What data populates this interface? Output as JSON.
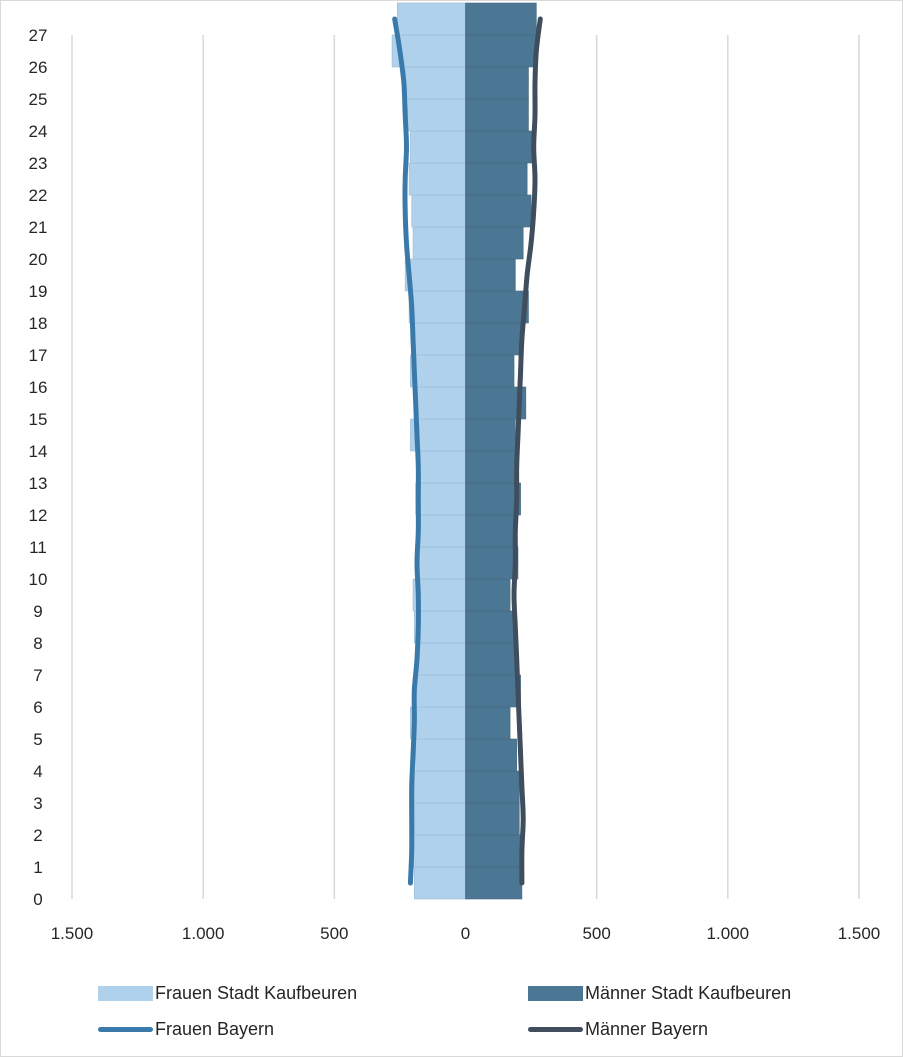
{
  "chart_data": {
    "type": "bar",
    "orientation": "horizontal",
    "subtype": "population-pyramid",
    "title": "",
    "xlabel": "",
    "ylabel": "",
    "xlim": [
      -1500,
      1500
    ],
    "x_ticks": [
      -1500,
      -1000,
      -500,
      0,
      500,
      1000,
      1500
    ],
    "x_tick_labels": [
      "1.500",
      "1.000",
      "500",
      "0",
      "500",
      "1.000",
      "1.500"
    ],
    "categories": [
      "0",
      "1",
      "2",
      "3",
      "4",
      "5",
      "6",
      "7",
      "8",
      "9",
      "10",
      "11",
      "12",
      "13",
      "14",
      "15",
      "16",
      "17",
      "18",
      "19",
      "20",
      "21",
      "22",
      "23",
      "24",
      "25",
      "26",
      "27"
    ],
    "grid": "vertical",
    "legend_position": "bottom",
    "series": [
      {
        "name": "Frauen Stadt Kaufbeuren",
        "kind": "bar",
        "side": "left",
        "color": "#b0d1eb",
        "values": [
          195,
          200,
          195,
          195,
          190,
          210,
          195,
          190,
          195,
          200,
          190,
          185,
          190,
          185,
          210,
          195,
          210,
          205,
          215,
          230,
          200,
          205,
          215,
          210,
          220,
          230,
          280,
          260
        ]
      },
      {
        "name": "Männer Stadt Kaufbeuren",
        "kind": "bar",
        "side": "right",
        "color": "#4c7794",
        "values": [
          215,
          210,
          205,
          205,
          195,
          170,
          210,
          200,
          190,
          170,
          200,
          195,
          210,
          200,
          190,
          230,
          185,
          215,
          240,
          190,
          220,
          250,
          235,
          255,
          240,
          240,
          270,
          270
        ]
      },
      {
        "name": "Frauen Bayern",
        "kind": "line",
        "side": "left",
        "color": "#3a7aab",
        "values": [
          210,
          205,
          205,
          205,
          200,
          195,
          195,
          185,
          180,
          180,
          185,
          180,
          180,
          180,
          185,
          190,
          195,
          200,
          205,
          215,
          225,
          230,
          230,
          225,
          230,
          235,
          250,
          270
        ]
      },
      {
        "name": "Männer Bayern",
        "kind": "line",
        "side": "right",
        "color": "#3f4d5c",
        "values": [
          215,
          215,
          220,
          215,
          210,
          205,
          200,
          195,
          190,
          185,
          190,
          190,
          195,
          195,
          200,
          205,
          210,
          215,
          225,
          235,
          250,
          260,
          265,
          260,
          265,
          265,
          270,
          285
        ]
      }
    ]
  }
}
